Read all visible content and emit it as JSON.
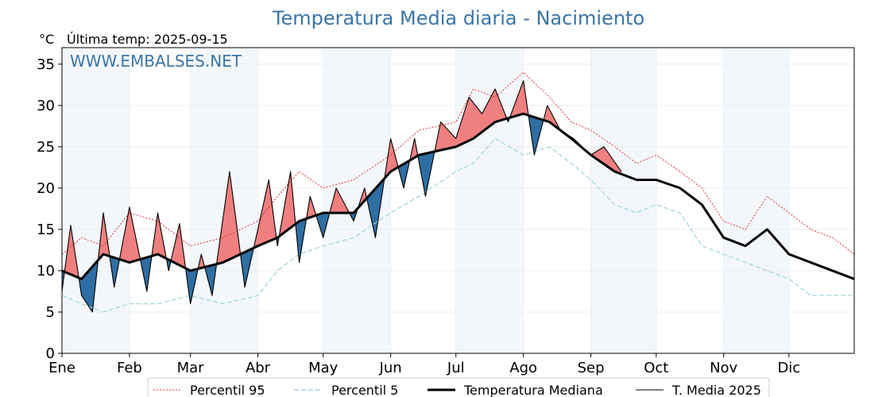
{
  "chart_data": {
    "type": "line",
    "title": "Temperatura Media diaria - Nacimiento",
    "unit_label": "°C",
    "last_temp_note": "Última temp: 2025-09-15",
    "watermark": "WWW.EMBALSES.NET",
    "ylim": [
      0,
      37
    ],
    "yticks": [
      0,
      5,
      10,
      15,
      20,
      25,
      30,
      35
    ],
    "xlim": [
      1,
      365
    ],
    "months": [
      {
        "label": "Ene",
        "day": 1
      },
      {
        "label": "Feb",
        "day": 32
      },
      {
        "label": "Mar",
        "day": 60
      },
      {
        "label": "Abr",
        "day": 91
      },
      {
        "label": "May",
        "day": 121
      },
      {
        "label": "Jun",
        "day": 152
      },
      {
        "label": "Jul",
        "day": 182
      },
      {
        "label": "Ago",
        "day": 213
      },
      {
        "label": "Sep",
        "day": 244
      },
      {
        "label": "Oct",
        "day": 274
      },
      {
        "label": "Nov",
        "day": 305
      },
      {
        "label": "Dic",
        "day": 335
      }
    ],
    "shaded_months": [
      [
        1,
        32
      ],
      [
        60,
        91
      ],
      [
        121,
        152
      ],
      [
        182,
        213
      ],
      [
        244,
        274
      ],
      [
        305,
        335
      ]
    ],
    "grid": true,
    "legend_position": "bottom",
    "series": [
      {
        "name": "Percentil 95",
        "color": "#e03030",
        "style": "dotted",
        "x": [
          1,
          10,
          20,
          32,
          45,
          60,
          75,
          91,
          100,
          110,
          121,
          135,
          152,
          165,
          182,
          190,
          200,
          213,
          225,
          235,
          244,
          255,
          265,
          274,
          285,
          295,
          305,
          315,
          325,
          335,
          345,
          355,
          365
        ],
        "values": [
          12,
          14,
          13,
          17,
          16,
          13,
          14,
          16,
          19,
          22,
          20,
          21,
          24,
          27,
          28,
          32,
          31,
          34,
          31,
          28,
          27,
          25,
          23,
          24,
          22,
          20,
          16,
          15,
          19,
          17,
          15,
          14,
          12
        ]
      },
      {
        "name": "Percentil 5",
        "color": "#a6d4e0",
        "style": "dashed",
        "x": [
          1,
          10,
          20,
          32,
          45,
          60,
          75,
          91,
          100,
          110,
          121,
          135,
          152,
          165,
          182,
          190,
          200,
          213,
          225,
          235,
          244,
          255,
          265,
          274,
          285,
          295,
          305,
          315,
          325,
          335,
          345,
          355,
          365
        ],
        "values": [
          7,
          6,
          5,
          6,
          6,
          7,
          6,
          7,
          10,
          12,
          13,
          14,
          17,
          19,
          22,
          23,
          26,
          24,
          25,
          23,
          21,
          18,
          17,
          18,
          17,
          13,
          12,
          11,
          10,
          9,
          7,
          7,
          7
        ]
      },
      {
        "name": "Temperatura Mediana",
        "color": "#000000",
        "style": "thick",
        "x": [
          1,
          10,
          20,
          32,
          45,
          60,
          75,
          91,
          100,
          110,
          121,
          135,
          152,
          165,
          182,
          190,
          200,
          213,
          225,
          235,
          244,
          255,
          265,
          274,
          285,
          295,
          305,
          315,
          325,
          335,
          345,
          355,
          365
        ],
        "values": [
          10,
          9,
          12,
          11,
          12,
          10,
          11,
          13,
          14,
          16,
          17,
          17,
          22,
          24,
          25,
          26,
          28,
          29,
          28,
          26,
          24,
          22,
          21,
          21,
          20,
          18,
          14,
          13,
          15,
          12,
          11,
          10,
          9
        ]
      },
      {
        "name": "T. Media 2025",
        "color": "#000000",
        "style": "thin",
        "x": [
          1,
          5,
          10,
          15,
          20,
          25,
          32,
          40,
          45,
          50,
          55,
          60,
          65,
          70,
          78,
          85,
          91,
          96,
          100,
          106,
          110,
          115,
          121,
          127,
          135,
          140,
          145,
          152,
          158,
          163,
          168,
          175,
          182,
          188,
          194,
          200,
          206,
          213,
          218,
          224,
          230,
          236,
          244,
          250,
          258
        ],
        "values": [
          7.5,
          15.5,
          7,
          5,
          17,
          8,
          17.7,
          7.5,
          17,
          10,
          15.7,
          6,
          12,
          7,
          22,
          8,
          15,
          21,
          13,
          22,
          11,
          19,
          14,
          20,
          16,
          20,
          14,
          26,
          20,
          26,
          19,
          28,
          26,
          31,
          29,
          32,
          28,
          33,
          24,
          30,
          27,
          26,
          24,
          25,
          22
        ]
      }
    ]
  },
  "legend": [
    {
      "label": "Percentil 95",
      "style": "dotted",
      "color": "#e03030"
    },
    {
      "label": "Percentil 5",
      "style": "dashed",
      "color": "#a6d4e0"
    },
    {
      "label": "Temperatura Mediana",
      "style": "thick",
      "color": "#000000"
    },
    {
      "label": "T. Media 2025",
      "style": "thin",
      "color": "#000000"
    }
  ],
  "colors": {
    "above_median_fill": "#f08080",
    "below_median_fill": "#2f6ea3",
    "shade": "#f3f7fb",
    "title": "#3a75a8"
  }
}
